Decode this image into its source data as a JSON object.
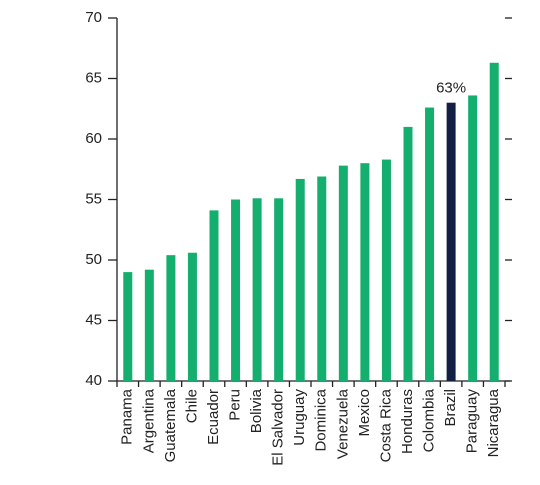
{
  "chart_data": {
    "type": "bar",
    "categories": [
      "Panama",
      "Argentina",
      "Guatemala",
      "Chile",
      "Ecuador",
      "Peru",
      "Bolivia",
      "El Salvador",
      "Uruguay",
      "Dominica",
      "Venezuela",
      "Mexico",
      "Costa Rica",
      "Honduras",
      "Colombia",
      "Brazil",
      "Paraguay",
      "Nicaragua"
    ],
    "values": [
      49.0,
      49.2,
      50.4,
      50.6,
      54.1,
      55.0,
      55.1,
      55.1,
      56.7,
      56.9,
      57.8,
      58.0,
      58.3,
      61.0,
      62.6,
      63.0,
      63.6,
      66.3
    ],
    "value_labels": [
      null,
      null,
      null,
      null,
      null,
      null,
      null,
      null,
      null,
      null,
      null,
      null,
      null,
      null,
      null,
      "63%",
      null,
      null
    ],
    "colors": [
      "#14ae6e",
      "#14ae6e",
      "#14ae6e",
      "#14ae6e",
      "#14ae6e",
      "#14ae6e",
      "#14ae6e",
      "#14ae6e",
      "#14ae6e",
      "#14ae6e",
      "#14ae6e",
      "#14ae6e",
      "#14ae6e",
      "#14ae6e",
      "#14ae6e",
      "#141f45",
      "#14ae6e",
      "#14ae6e"
    ],
    "ylim": [
      40,
      70
    ],
    "yticks": [
      40,
      45,
      50,
      55,
      60,
      65,
      70
    ]
  }
}
